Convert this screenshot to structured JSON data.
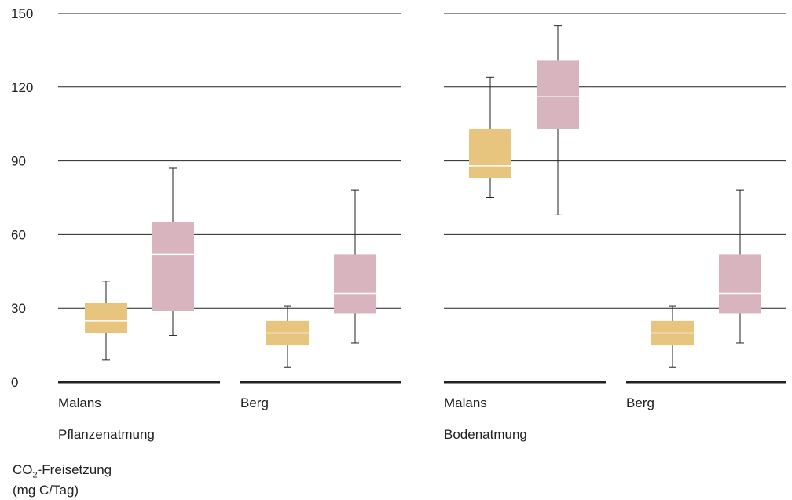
{
  "chart_data": {
    "type": "box",
    "ylim": [
      0,
      150
    ],
    "yticks": [
      "0",
      "30",
      "60",
      "90",
      "120",
      "150"
    ],
    "ylabel": {
      "main": "CO",
      "sub": "2",
      "rest": "-Freisetzung",
      "unit": "(mg C/Tag)"
    },
    "colors": {
      "yellow": "#e8c57e",
      "pink": "#d7b4be",
      "median": "#ffffff",
      "grid": "#222222"
    },
    "panels": [
      {
        "title": "Pflanzenatmung",
        "groups": [
          {
            "label": "Malans",
            "boxes": [
              {
                "color": "yellow",
                "min": 9,
                "q1": 20,
                "median": 25,
                "q3": 32,
                "max": 41
              },
              {
                "color": "pink",
                "min": 19,
                "q1": 29,
                "median": 52,
                "q3": 65,
                "max": 87
              }
            ]
          },
          {
            "label": "Berg",
            "boxes": [
              {
                "color": "yellow",
                "min": 6,
                "q1": 15,
                "median": 20,
                "q3": 25,
                "max": 31
              },
              {
                "color": "pink",
                "min": 16,
                "q1": 28,
                "median": 36,
                "q3": 52,
                "max": 78
              }
            ]
          }
        ]
      },
      {
        "title": "Bodenatmung",
        "groups": [
          {
            "label": "Malans",
            "boxes": [
              {
                "color": "yellow",
                "min": 75,
                "q1": 83,
                "median": 88,
                "q3": 103,
                "max": 124
              },
              {
                "color": "pink",
                "min": 68,
                "q1": 103,
                "median": 116,
                "q3": 131,
                "max": 145
              }
            ]
          },
          {
            "label": "Berg",
            "boxes": [
              {
                "color": "yellow",
                "min": 6,
                "q1": 15,
                "median": 20,
                "q3": 25,
                "max": 31
              },
              {
                "color": "pink",
                "min": 16,
                "q1": 28,
                "median": 36,
                "q3": 52,
                "max": 78
              }
            ]
          }
        ]
      }
    ]
  }
}
